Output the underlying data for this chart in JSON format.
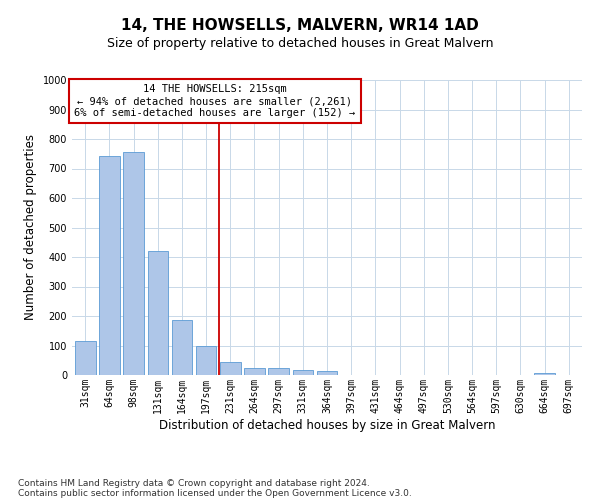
{
  "title": "14, THE HOWSELLS, MALVERN, WR14 1AD",
  "subtitle": "Size of property relative to detached houses in Great Malvern",
  "xlabel": "Distribution of detached houses by size in Great Malvern",
  "ylabel": "Number of detached properties",
  "bar_labels": [
    "31sqm",
    "64sqm",
    "98sqm",
    "131sqm",
    "164sqm",
    "197sqm",
    "231sqm",
    "264sqm",
    "297sqm",
    "331sqm",
    "364sqm",
    "397sqm",
    "431sqm",
    "464sqm",
    "497sqm",
    "530sqm",
    "564sqm",
    "597sqm",
    "630sqm",
    "664sqm",
    "697sqm"
  ],
  "bar_values": [
    115,
    743,
    755,
    420,
    187,
    97,
    45,
    23,
    24,
    18,
    15,
    0,
    0,
    0,
    0,
    0,
    0,
    0,
    0,
    8,
    0
  ],
  "bar_color": "#aec6e8",
  "bar_edge_color": "#5b9bd5",
  "background_color": "#ffffff",
  "grid_color": "#c8d8e8",
  "annotation_box_text_line1": "14 THE HOWSELLS: 215sqm",
  "annotation_box_text_line2": "← 94% of detached houses are smaller (2,261)",
  "annotation_box_text_line3": "6% of semi-detached houses are larger (152) →",
  "annotation_box_color": "#ffffff",
  "annotation_box_edge_color": "#cc0000",
  "red_line_color": "#cc0000",
  "ylim": [
    0,
    1000
  ],
  "yticks": [
    0,
    100,
    200,
    300,
    400,
    500,
    600,
    700,
    800,
    900,
    1000
  ],
  "footnote_line1": "Contains HM Land Registry data © Crown copyright and database right 2024.",
  "footnote_line2": "Contains public sector information licensed under the Open Government Licence v3.0.",
  "title_fontsize": 11,
  "subtitle_fontsize": 9,
  "xlabel_fontsize": 8.5,
  "ylabel_fontsize": 8.5,
  "tick_fontsize": 7,
  "annot_fontsize": 7.5,
  "footnote_fontsize": 6.5
}
